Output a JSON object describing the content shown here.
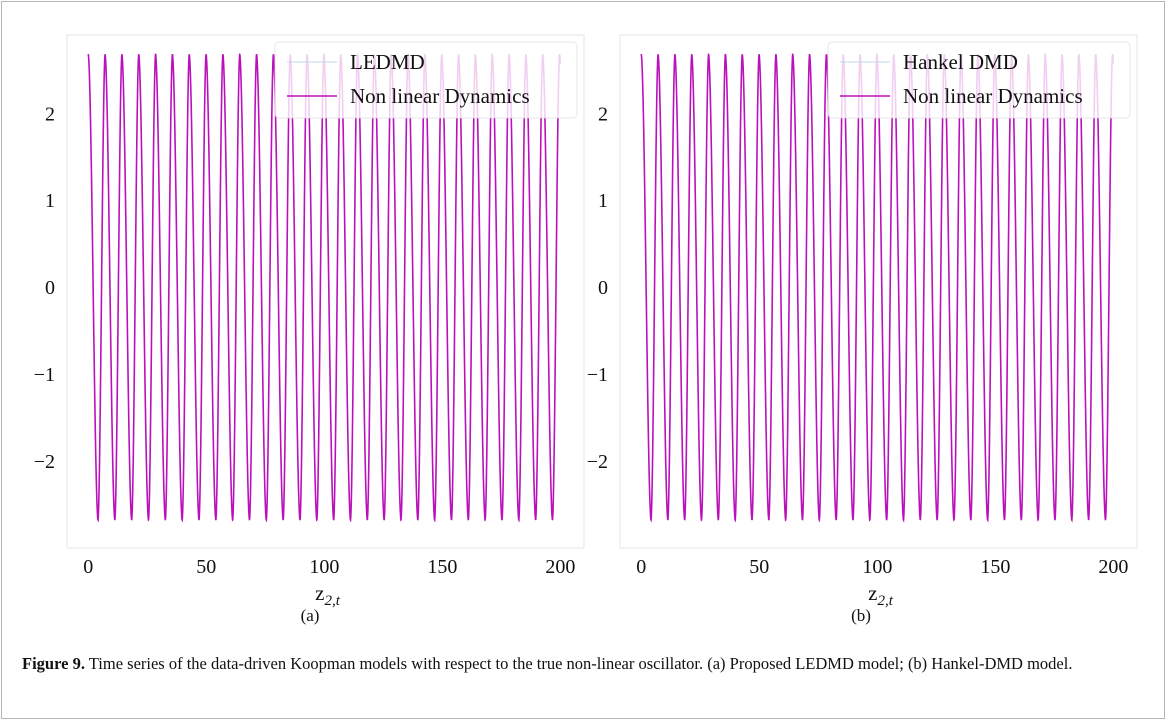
{
  "chart_data": [
    {
      "type": "line",
      "panel_label": "(a)",
      "xlabel_main": "z",
      "xlabel_sub": "2,t",
      "ylabel": "",
      "xlim": [
        -9,
        210
      ],
      "ylim": [
        -3.0,
        2.9
      ],
      "xticks": [
        0,
        50,
        100,
        150,
        200
      ],
      "yticks": [
        -2,
        -1,
        0,
        1,
        2
      ],
      "grid": false,
      "legend_position": "top-right",
      "series": [
        {
          "name": "LEDMD",
          "color": "#bcd8ea",
          "style": "thin-line",
          "period": 7.13,
          "x_range": [
            0,
            200
          ],
          "y_range": [
            -2.68,
            2.68
          ]
        },
        {
          "name": "Non linear Dynamics",
          "color": "#bb11bb",
          "style": "line",
          "period": 7.13,
          "x_range": [
            0,
            200
          ],
          "y_range": [
            -2.68,
            2.68
          ]
        }
      ]
    },
    {
      "type": "line",
      "panel_label": "(b)",
      "xlabel_main": "z",
      "xlabel_sub": "2,t",
      "ylabel": "",
      "xlim": [
        -9,
        210
      ],
      "ylim": [
        -3.0,
        2.9
      ],
      "xticks": [
        0,
        50,
        100,
        150,
        200
      ],
      "yticks": [
        -2,
        -1,
        0,
        1,
        2
      ],
      "grid": false,
      "legend_position": "top-right",
      "series": [
        {
          "name": "Hankel DMD",
          "color": "#bcd8ea",
          "style": "thin-line",
          "period": 7.13,
          "x_range": [
            0,
            200
          ],
          "y_range": [
            -2.68,
            2.68
          ]
        },
        {
          "name": "Non linear Dynamics",
          "color": "#bb11bb",
          "style": "line",
          "period": 7.13,
          "x_range": [
            0,
            200
          ],
          "y_range": [
            -2.68,
            2.68
          ]
        }
      ]
    }
  ],
  "caption": {
    "label": "Figure 9.",
    "text": " Time series of the data-driven Koopman models with respect to the true non-linear oscillator. (a) Proposed LEDMD model; (b) Hankel-DMD model."
  }
}
